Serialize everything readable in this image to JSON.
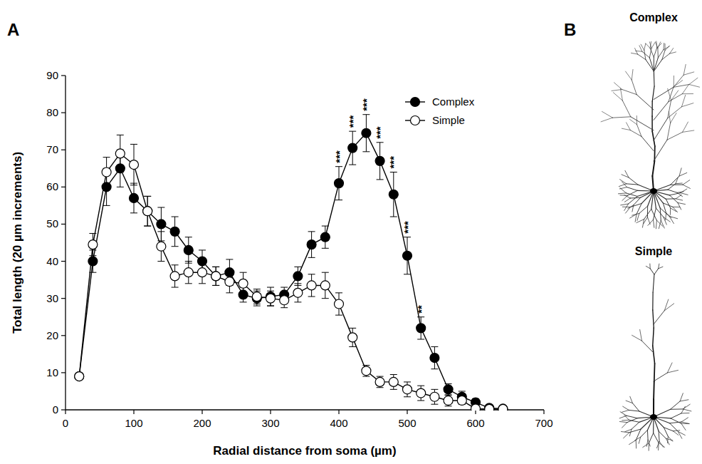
{
  "chart_data": {
    "type": "line",
    "xlabel": "Radial distance from soma (µm)",
    "ylabel": "Total length (20 µm increments)",
    "x": [
      20,
      40,
      60,
      80,
      100,
      120,
      140,
      160,
      180,
      200,
      220,
      240,
      260,
      280,
      300,
      320,
      340,
      360,
      380,
      400,
      420,
      440,
      460,
      480,
      500,
      520,
      540,
      560,
      580,
      600,
      620,
      640
    ],
    "series": [
      {
        "name": "Complex",
        "color": "#000000",
        "marker": "circle",
        "line_style": "solid",
        "values": [
          9,
          40,
          60,
          65,
          57,
          53.5,
          50,
          48,
          43,
          40,
          36,
          37,
          31,
          30,
          30.5,
          31,
          36,
          44.5,
          46.5,
          61,
          70.5,
          74.5,
          67,
          58,
          41.5,
          22,
          14,
          5.5,
          3.5,
          2,
          0.5,
          0.3
        ],
        "errors": [
          0,
          3,
          5,
          5,
          4,
          4,
          4.5,
          4,
          3.5,
          3,
          2.5,
          3.5,
          2,
          2,
          2.5,
          2,
          2.5,
          3.5,
          3,
          4.5,
          4.5,
          5,
          5,
          6,
          5,
          3,
          3,
          1.5,
          1.5,
          1,
          0.5,
          0.5
        ]
      },
      {
        "name": "Simple",
        "color": "#ffffff",
        "marker": "circle",
        "line_style": "solid",
        "values": [
          9,
          44.5,
          64,
          69,
          66,
          53.5,
          44,
          36,
          37,
          37,
          36,
          34.5,
          34,
          30.5,
          30,
          29.5,
          31.5,
          33.5,
          33.5,
          28.5,
          19.5,
          10.5,
          7.5,
          7.5,
          5.5,
          4.5,
          3.5,
          2.5,
          2.5,
          0.3,
          0.2,
          0.2
        ],
        "errors": [
          0,
          3,
          4,
          5,
          5.5,
          4,
          4,
          3,
          3,
          3,
          2.5,
          3,
          3,
          2,
          2,
          2,
          2.5,
          3,
          3.5,
          3,
          2.5,
          1.5,
          1.5,
          2,
          2,
          2,
          2,
          1.5,
          1,
          0.5,
          0.5,
          0.5
        ]
      }
    ],
    "xlim": [
      0,
      700
    ],
    "xticks": [
      0,
      100,
      200,
      300,
      400,
      500,
      600,
      700
    ],
    "ylim": [
      0,
      90
    ],
    "yticks": [
      0,
      10,
      20,
      30,
      40,
      50,
      60,
      70,
      80,
      90
    ],
    "legend": "upper right",
    "grid": false,
    "annotations": [
      {
        "x": 400,
        "text": "***"
      },
      {
        "x": 420,
        "text": "***"
      },
      {
        "x": 440,
        "text": "***"
      },
      {
        "x": 460,
        "text": "***"
      },
      {
        "x": 480,
        "text": "***"
      },
      {
        "x": 500,
        "text": "***"
      },
      {
        "x": 520,
        "text": "**"
      }
    ]
  },
  "panel_labels": [
    "A",
    "B"
  ],
  "panel_b": {
    "titles": [
      "Complex",
      "Simple"
    ]
  }
}
